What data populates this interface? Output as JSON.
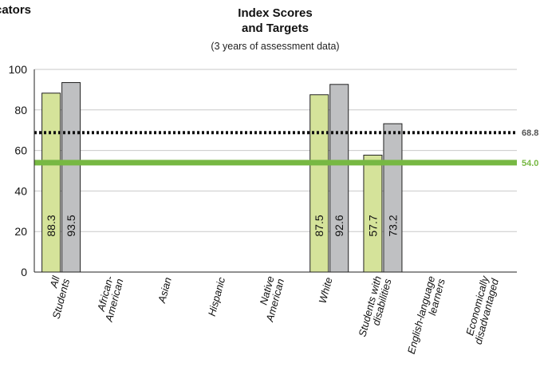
{
  "page": {
    "heading_fragment": "cators"
  },
  "chart_data": {
    "type": "bar",
    "title_line1": "Index Scores",
    "title_line2": "and Targets",
    "subtitle": "(3 years of assessment data)",
    "categories": [
      "All Students",
      "African-American",
      "Asian",
      "Hispanic",
      "Native American",
      "White",
      "Students with disabilities",
      "English-language learners",
      "Economically disadvantaged"
    ],
    "series": [
      {
        "color": "#d5e39a",
        "values": [
          88.3,
          null,
          null,
          null,
          null,
          87.5,
          57.7,
          null,
          null
        ]
      },
      {
        "color": "#bfc0c2",
        "values": [
          93.5,
          null,
          null,
          null,
          null,
          92.6,
          73.2,
          null,
          null
        ]
      }
    ],
    "ylim": [
      0,
      100
    ],
    "yticks": [
      0,
      20,
      40,
      60,
      80,
      100
    ],
    "reference_lines": [
      {
        "value": 68.8,
        "label": "68.8",
        "style": "dotted",
        "color": "#111111",
        "label_color": "#555555"
      },
      {
        "value": 54.0,
        "label": "54.0",
        "style": "solid",
        "color": "#77b843",
        "label_color": "#77b843"
      }
    ],
    "grid": true,
    "xlabel": "",
    "ylabel": ""
  }
}
